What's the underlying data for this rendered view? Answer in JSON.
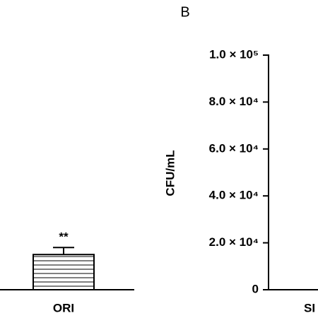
{
  "chart_data": [
    {
      "type": "bar",
      "categories": [
        "ORI"
      ],
      "values": [
        15000
      ],
      "errors": [
        3000
      ],
      "annotations": [
        "**"
      ],
      "color": "#000000",
      "ylim": [
        0,
        100000
      ]
    },
    {
      "type": "bar",
      "panel_label": "B",
      "y_label": "CFU/mL",
      "categories": [
        "SI"
      ],
      "ylim": [
        0,
        100000
      ],
      "yticks": [
        0,
        {
          "value": 20000,
          "label": "2.0 × 10⁴"
        },
        {
          "value": 40000,
          "label": "4.0 × 10⁴"
        },
        {
          "value": 60000,
          "label": "6.0 × 10⁴"
        },
        {
          "value": 80000,
          "label": "8.0 × 10⁴"
        },
        {
          "value": 100000,
          "label": "1.0 × 10⁵"
        }
      ]
    }
  ]
}
